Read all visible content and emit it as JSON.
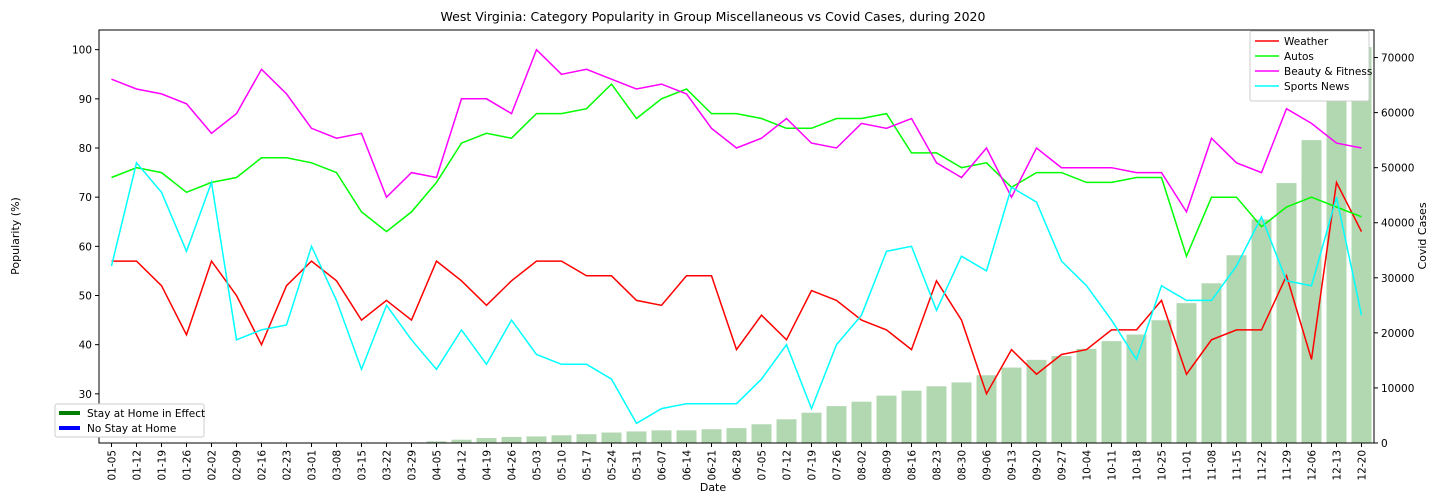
{
  "chart_data": {
    "type": "line",
    "title": "West Virginia: Category Popularity in Group Miscellaneous vs Covid Cases, during 2020",
    "xlabel": "Date",
    "ylabel": "Popularity (%)",
    "y2label": "Covid Cases",
    "ylim": [
      20,
      104
    ],
    "y2lim": [
      0,
      75000
    ],
    "yticks": [
      30,
      40,
      50,
      60,
      70,
      80,
      90,
      100
    ],
    "y2ticks": [
      0,
      10000,
      20000,
      30000,
      40000,
      50000,
      60000,
      70000
    ],
    "grid": false,
    "legend_position": "top-right",
    "categories": [
      "01-05",
      "01-12",
      "01-19",
      "01-26",
      "02-02",
      "02-09",
      "02-16",
      "02-23",
      "03-01",
      "03-08",
      "03-15",
      "03-22",
      "03-29",
      "04-05",
      "04-12",
      "04-19",
      "04-26",
      "05-03",
      "05-10",
      "05-17",
      "05-24",
      "05-31",
      "06-07",
      "06-14",
      "06-21",
      "06-28",
      "07-05",
      "07-12",
      "07-19",
      "07-26",
      "08-02",
      "08-09",
      "08-16",
      "08-23",
      "08-30",
      "09-06",
      "09-13",
      "09-20",
      "09-27",
      "10-04",
      "10-11",
      "10-18",
      "10-25",
      "11-01",
      "11-08",
      "11-15",
      "11-22",
      "11-29",
      "12-06",
      "12-13",
      "12-20"
    ],
    "series": [
      {
        "name": "Weather",
        "color": "#ff0000",
        "values": [
          57,
          57,
          52,
          42,
          57,
          50,
          40,
          52,
          57,
          53,
          45,
          49,
          45,
          57,
          53,
          48,
          53,
          57,
          57,
          54,
          54,
          49,
          48,
          54,
          54,
          39,
          46,
          41,
          51,
          49,
          45,
          43,
          39,
          53,
          45,
          30,
          39,
          34,
          38,
          39,
          43,
          43,
          49,
          34,
          41,
          43,
          43,
          54,
          37,
          73,
          63
        ]
      },
      {
        "name": "Autos",
        "color": "#00ff00",
        "values": [
          74,
          76,
          75,
          71,
          73,
          74,
          78,
          78,
          77,
          75,
          67,
          63,
          67,
          73,
          81,
          83,
          82,
          87,
          87,
          88,
          93,
          86,
          90,
          92,
          87,
          87,
          86,
          84,
          84,
          86,
          86,
          87,
          79,
          79,
          76,
          77,
          72,
          75,
          75,
          73,
          73,
          74,
          74,
          58,
          70,
          70,
          64,
          68,
          70,
          68,
          66
        ]
      },
      {
        "name": "Beauty & Fitness",
        "color": "#ff00ff",
        "values": [
          94,
          92,
          91,
          89,
          83,
          87,
          96,
          91,
          84,
          82,
          83,
          70,
          75,
          74,
          90,
          90,
          87,
          100,
          95,
          96,
          94,
          92,
          93,
          91,
          84,
          80,
          82,
          86,
          81,
          80,
          85,
          84,
          86,
          77,
          74,
          80,
          70,
          80,
          76,
          76,
          76,
          75,
          75,
          67,
          82,
          77,
          75,
          88,
          85,
          81,
          80
        ]
      },
      {
        "name": "Sports News",
        "color": "#00ffff",
        "values": [
          56,
          77,
          71,
          59,
          73,
          41,
          43,
          44,
          60,
          49,
          35,
          48,
          41,
          35,
          43,
          36,
          45,
          38,
          36,
          36,
          33,
          24,
          27,
          28,
          28,
          28,
          33,
          40,
          27,
          40,
          46,
          59,
          60,
          47,
          58,
          55,
          72,
          69,
          57,
          52,
          45,
          37,
          52,
          49,
          49,
          56,
          66,
          53,
          52,
          70,
          46
        ]
      }
    ],
    "bars": {
      "name": "Covid Cases",
      "color": "#b2d8b2",
      "values": [
        0,
        0,
        0,
        0,
        0,
        0,
        0,
        0,
        0,
        0,
        0,
        0,
        100,
        300,
        600,
        900,
        1100,
        1200,
        1400,
        1600,
        1900,
        2100,
        2300,
        2300,
        2500,
        2700,
        3400,
        4300,
        5500,
        6700,
        7500,
        8600,
        9500,
        10300,
        11000,
        12300,
        13700,
        15100,
        15800,
        17100,
        18500,
        19700,
        22300,
        25400,
        29000,
        34100,
        40600,
        47200,
        55000,
        63900,
        71900
      ]
    },
    "bottom_legend": [
      {
        "label": "Stay at Home in Effect",
        "color": "#008000"
      },
      {
        "label": "No Stay at Home",
        "color": "#0000ff"
      }
    ]
  }
}
